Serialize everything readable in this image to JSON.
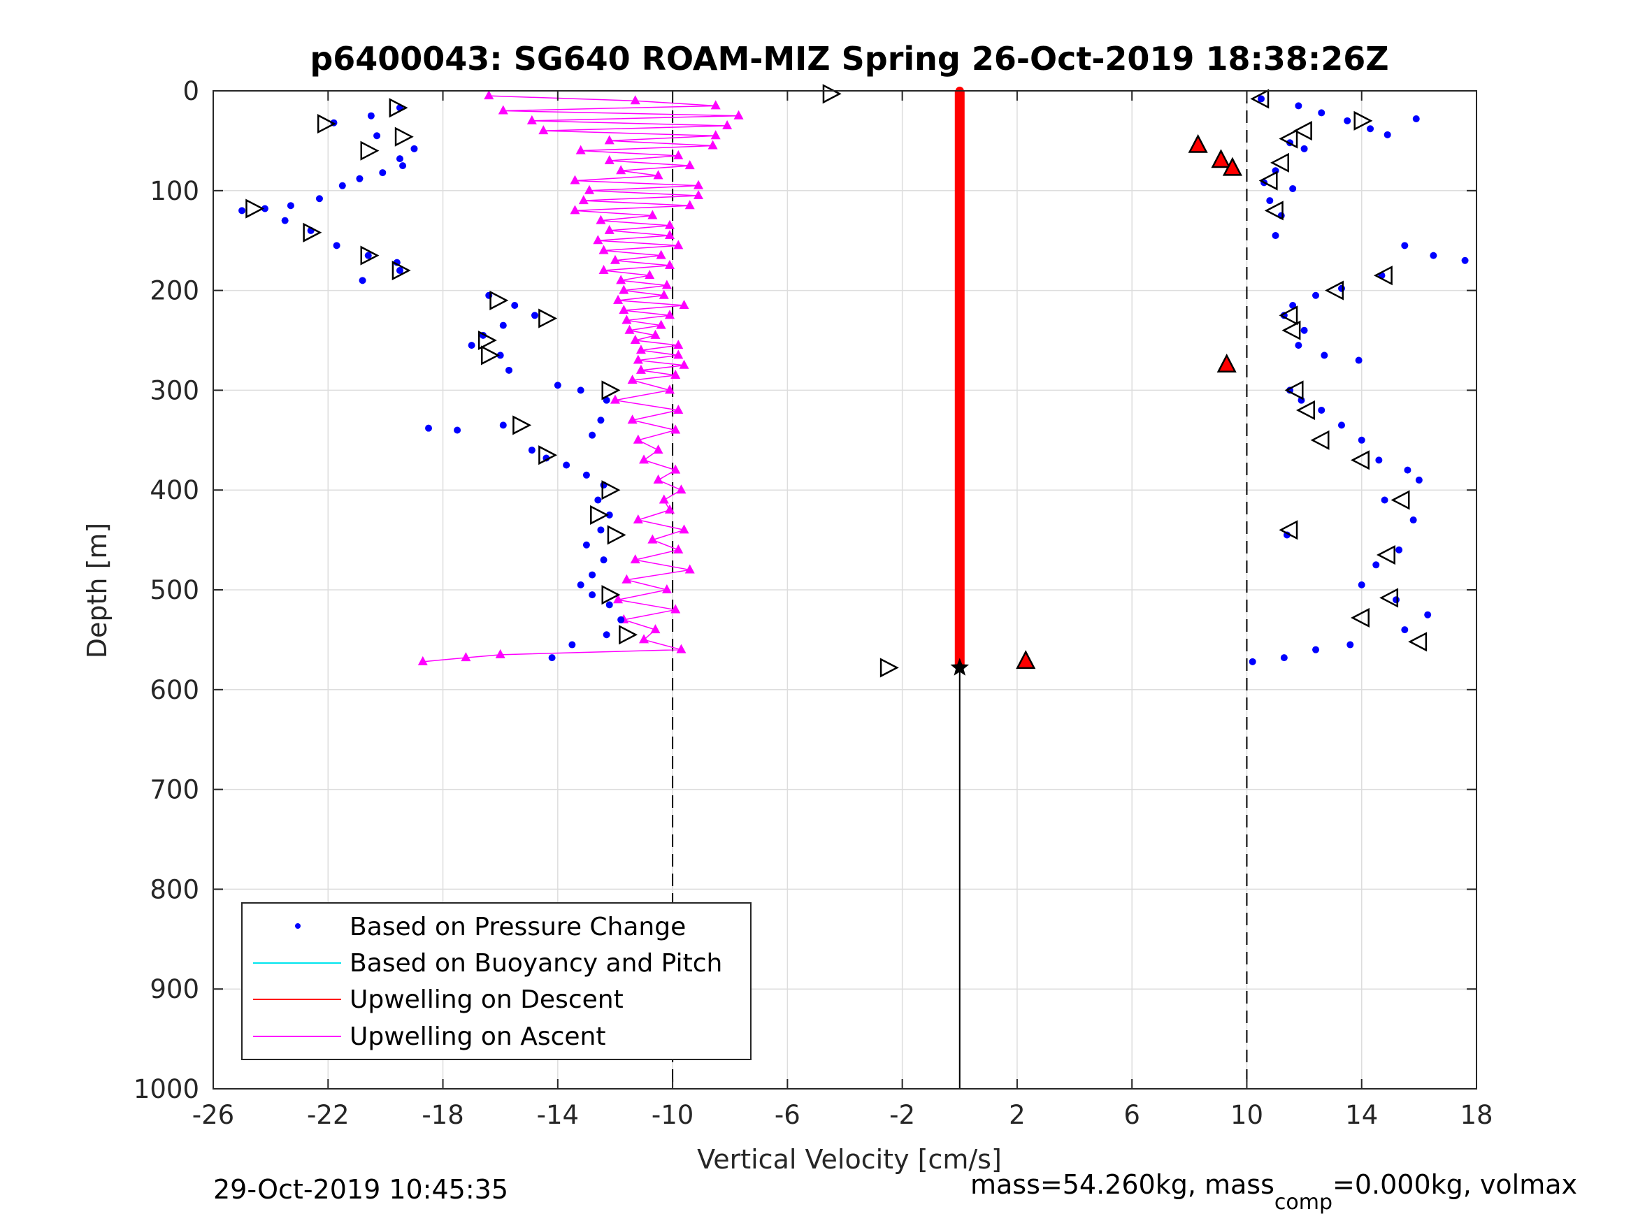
{
  "chart_data": {
    "type": "scatter",
    "title": "p6400043: SG640 ROAM-MIZ Spring 26-Oct-2019 18:38:26Z",
    "xlabel": "Vertical Velocity [cm/s]",
    "ylabel": "Depth [m]",
    "xlim": [
      -26,
      18
    ],
    "ylim": [
      0,
      1000
    ],
    "y_reversed": true,
    "grid": true,
    "xticks": [
      -26,
      -22,
      -18,
      -14,
      -10,
      -6,
      -2,
      2,
      6,
      10,
      14,
      18
    ],
    "xtick_labels": [
      "-26",
      "-22",
      "-18",
      "-14",
      "-10",
      "-6",
      "-2",
      "2",
      "6",
      "10",
      "14",
      "18"
    ],
    "yticks": [
      0,
      100,
      200,
      300,
      400,
      500,
      600,
      700,
      800,
      900,
      1000
    ],
    "ytick_labels": [
      "0",
      "100",
      "200",
      "300",
      "400",
      "500",
      "600",
      "700",
      "800",
      "900",
      "1000"
    ],
    "reference_lines": [
      {
        "x": -10,
        "style": "dashed"
      },
      {
        "x": 0,
        "style": "solid"
      },
      {
        "x": 10,
        "style": "dashed"
      }
    ],
    "legend_position": "bottom-left",
    "legend": [
      {
        "label": "Based on Pressure Change",
        "color": "#0000ff",
        "marker": "dot"
      },
      {
        "label": "Based on Buoyancy and Pitch",
        "color": "#00e5ee",
        "marker": "line"
      },
      {
        "label": "Upwelling on Descent",
        "color": "#ff0000",
        "marker": "line"
      },
      {
        "label": "Upwelling on Ascent",
        "color": "#ff00ff",
        "marker": "line"
      }
    ],
    "series": [
      {
        "name": "Based on Pressure Change (descent)",
        "color": "#0000ff",
        "x": [
          -19.5,
          -20.5,
          -21.8,
          -20.3,
          -19.0,
          -19.5,
          -19.4,
          -20.1,
          -20.9,
          -21.5,
          -22.3,
          -23.3,
          -24.2,
          -25.0,
          -23.5,
          -22.6,
          -21.7,
          -20.6,
          -19.6,
          -19.5,
          -20.8,
          -16.4,
          -15.5,
          -14.8,
          -15.9,
          -16.6,
          -17.0,
          -16.0,
          -15.7,
          -14.0,
          -13.2,
          -12.3,
          -12.5,
          -12.8,
          -15.9,
          -17.5,
          -18.5,
          -14.9,
          -14.4,
          -13.7,
          -13.0,
          -12.4,
          -12.6,
          -12.2,
          -12.5,
          -13.0,
          -12.4,
          -12.8,
          -13.2,
          -12.8,
          -12.2,
          -11.8,
          -12.3,
          -13.5,
          -14.2
        ],
        "y": [
          17,
          25,
          32,
          45,
          58,
          68,
          75,
          82,
          88,
          95,
          108,
          115,
          118,
          120,
          130,
          140,
          155,
          165,
          172,
          180,
          190,
          205,
          215,
          225,
          235,
          245,
          255,
          265,
          280,
          295,
          300,
          310,
          330,
          345,
          335,
          340,
          338,
          360,
          368,
          375,
          385,
          395,
          410,
          425,
          440,
          455,
          470,
          485,
          495,
          505,
          515,
          530,
          545,
          555,
          568
        ]
      },
      {
        "name": "Based on Pressure Change (ascent)",
        "color": "#0000ff",
        "x": [
          10.5,
          11.8,
          12.6,
          13.5,
          14.3,
          14.9,
          15.9,
          11.5,
          12.0,
          11.0,
          10.6,
          11.6,
          10.8,
          11.2,
          11.0,
          15.5,
          16.5,
          17.6,
          14.7,
          13.3,
          12.4,
          11.6,
          11.3,
          12.0,
          11.8,
          12.7,
          13.9,
          11.5,
          11.9,
          12.6,
          13.3,
          14.0,
          14.6,
          15.6,
          16.0,
          11.4,
          14.8,
          15.8,
          15.3,
          14.5,
          14.0,
          15.2,
          16.3,
          15.5,
          13.6,
          12.4,
          11.3,
          10.2
        ],
        "y": [
          8,
          15,
          22,
          30,
          38,
          44,
          28,
          52,
          58,
          80,
          92,
          98,
          110,
          125,
          145,
          155,
          165,
          170,
          185,
          198,
          205,
          215,
          225,
          240,
          255,
          265,
          270,
          300,
          310,
          320,
          335,
          350,
          370,
          380,
          390,
          445,
          410,
          430,
          460,
          475,
          495,
          510,
          525,
          540,
          555,
          560,
          568,
          572
        ]
      },
      {
        "name": "Upwelling on Descent",
        "color": "#ff0000",
        "x": [
          0,
          0,
          0,
          0,
          0,
          0,
          0,
          0,
          0,
          0,
          0,
          0,
          0
        ],
        "y": [
          0,
          50,
          100,
          150,
          200,
          250,
          300,
          350,
          400,
          450,
          500,
          550,
          575
        ]
      },
      {
        "name": "Upwelling on Ascent",
        "color": "#ff00ff",
        "x": [
          -16.4,
          -11.3,
          -8.5,
          -15.9,
          -7.7,
          -14.9,
          -8.1,
          -14.5,
          -8.5,
          -12.2,
          -8.6,
          -13.2,
          -9.8,
          -12.2,
          -9.4,
          -11.8,
          -10.5,
          -13.4,
          -9.1,
          -12.9,
          -9.1,
          -13.1,
          -9.4,
          -13.4,
          -10.7,
          -12.5,
          -10.1,
          -12.2,
          -10.1,
          -12.6,
          -9.8,
          -12.4,
          -10.4,
          -12.0,
          -10.1,
          -12.4,
          -10.8,
          -11.8,
          -10.2,
          -11.7,
          -10.3,
          -11.9,
          -9.6,
          -11.7,
          -10.1,
          -11.6,
          -10.4,
          -11.5,
          -10.6,
          -11.3,
          -9.8,
          -11.1,
          -9.8,
          -11.2,
          -9.6,
          -11.1,
          -9.9,
          -11.4,
          -10.1,
          -12.0,
          -9.8,
          -11.4,
          -9.9,
          -11.2,
          -10.5,
          -11.0,
          -9.9,
          -10.5,
          -9.7,
          -10.3,
          -10.1,
          -11.2,
          -9.6,
          -10.7,
          -9.8,
          -11.3,
          -9.4,
          -11.6,
          -10.2,
          -11.9,
          -9.9,
          -11.7,
          -10.6,
          -11.0,
          -9.7,
          -16.0,
          -17.2,
          -18.7
        ],
        "y": [
          5,
          10,
          15,
          20,
          25,
          30,
          35,
          40,
          45,
          50,
          55,
          60,
          65,
          70,
          75,
          80,
          85,
          90,
          95,
          100,
          105,
          110,
          115,
          120,
          125,
          130,
          135,
          140,
          145,
          150,
          155,
          160,
          165,
          170,
          175,
          180,
          185,
          190,
          195,
          200,
          205,
          210,
          215,
          220,
          225,
          230,
          235,
          240,
          245,
          250,
          255,
          260,
          265,
          270,
          275,
          280,
          285,
          290,
          300,
          310,
          320,
          330,
          340,
          350,
          360,
          370,
          380,
          390,
          400,
          410,
          420,
          430,
          440,
          450,
          460,
          470,
          480,
          490,
          500,
          510,
          520,
          530,
          540,
          550,
          560,
          565,
          568,
          572
        ]
      }
    ],
    "red_triangles": {
      "x": [
        8.3,
        9.1,
        9.5,
        9.3,
        2.3
      ],
      "y": [
        55,
        70,
        78,
        275,
        572
      ]
    },
    "black_markers_ascent": {
      "x": [
        10.5,
        11.5,
        12.0,
        11.2,
        10.8,
        11.0,
        14.8,
        13.1,
        11.5,
        11.6,
        11.7,
        12.1,
        12.6,
        14.0,
        15.4,
        11.5,
        14.9,
        15.0,
        14.0,
        16.0
      ],
      "y": [
        8,
        48,
        40,
        72,
        90,
        120,
        185,
        200,
        225,
        240,
        300,
        320,
        350,
        370,
        410,
        440,
        465,
        508,
        528,
        552
      ]
    },
    "black_markers_descent": {
      "x": [
        -19.6,
        -22.1,
        -19.4,
        -20.6,
        -24.6,
        -22.6,
        -20.6,
        -19.5,
        -16.1,
        -14.4,
        -16.5,
        -16.4,
        -12.2,
        -15.3,
        -14.4,
        -12.2,
        -12.6,
        -12.0,
        -12.2,
        -11.6,
        -2.5,
        -4.5,
        14.0
      ],
      "y": [
        17,
        33,
        46,
        60,
        118,
        142,
        165,
        180,
        210,
        228,
        250,
        265,
        300,
        335,
        365,
        400,
        425,
        445,
        505,
        545,
        578,
        3,
        30
      ]
    },
    "footer_left": "29-Oct-2019 10:45:35",
    "footer_right": {
      "prefix": "mass=54.260kg, mass",
      "subscript": "comp",
      "suffix": "=0.000kg, volmax"
    }
  },
  "colors": {
    "pressure": "#0000ff",
    "buoyancy": "#00e5ee",
    "descent": "#ff0000",
    "ascent": "#ff00ff",
    "grid": "#dddddd",
    "axis": "#262626"
  }
}
